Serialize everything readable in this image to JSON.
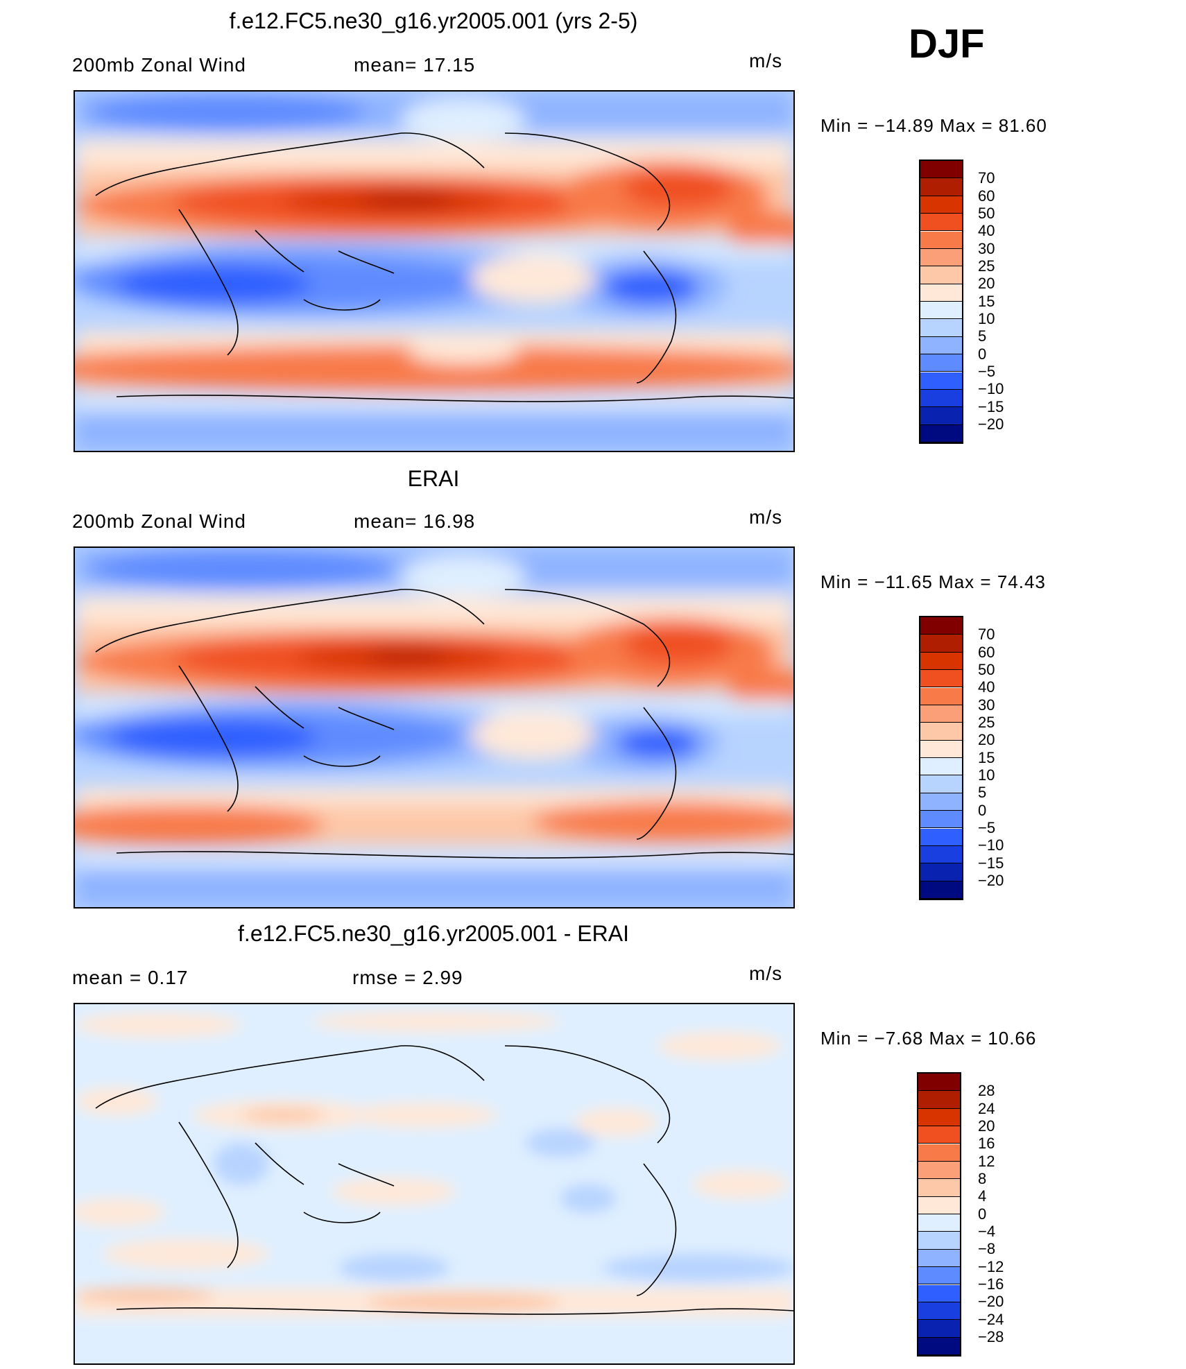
{
  "season": "DJF",
  "panels": [
    {
      "title": "f.e12.FC5.ne30_g16.yr2005.001 (yrs 2-5)",
      "left_label": "200mb Zonal Wind",
      "center_label": "mean=  17.15",
      "units": "m/s",
      "minmax": "Min = −14.89 Max =  81.60",
      "colorbar_labels": [
        "70",
        "60",
        "50",
        "40",
        "30",
        "25",
        "20",
        "15",
        "10",
        "5",
        "0",
        "−5",
        "−10",
        "−15",
        "−20"
      ],
      "colorbar_colors": [
        "#800000",
        "#b01e00",
        "#d83400",
        "#f05020",
        "#f87a48",
        "#fb9f78",
        "#fdc8a8",
        "#ffe8d8",
        "#dfefff",
        "#b7d3ff",
        "#8fb3ff",
        "#5e8bff",
        "#2f5fff",
        "#1a3fe0",
        "#0a22b0",
        "#000a80"
      ]
    },
    {
      "title": "ERAI",
      "left_label": "200mb Zonal Wind",
      "center_label": "mean=  16.98",
      "units": "m/s",
      "minmax": "Min = −11.65 Max =  74.43",
      "colorbar_labels": [
        "70",
        "60",
        "50",
        "40",
        "30",
        "25",
        "20",
        "15",
        "10",
        "5",
        "0",
        "−5",
        "−10",
        "−15",
        "−20"
      ],
      "colorbar_colors": [
        "#800000",
        "#b01e00",
        "#d83400",
        "#f05020",
        "#f87a48",
        "#fb9f78",
        "#fdc8a8",
        "#ffe8d8",
        "#dfefff",
        "#b7d3ff",
        "#8fb3ff",
        "#5e8bff",
        "#2f5fff",
        "#1a3fe0",
        "#0a22b0",
        "#000a80"
      ]
    },
    {
      "title": "f.e12.FC5.ne30_g16.yr2005.001 - ERAI",
      "left_label": "mean =    0.17",
      "center_label": "rmse =    2.99",
      "units": "m/s",
      "minmax": "Min =   −7.68 Max =  10.66",
      "colorbar_labels": [
        "28",
        "24",
        "20",
        "16",
        "12",
        "8",
        "4",
        "0",
        "−4",
        "−8",
        "−12",
        "−16",
        "−20",
        "−24",
        "−28"
      ],
      "colorbar_colors": [
        "#800000",
        "#b01e00",
        "#d83400",
        "#f05020",
        "#f87a48",
        "#fb9f78",
        "#fdc8a8",
        "#ffe8d8",
        "#dfefff",
        "#b7d3ff",
        "#8fb3ff",
        "#5e8bff",
        "#2f5fff",
        "#1a3fe0",
        "#0a22b0",
        "#000a80"
      ]
    }
  ]
}
